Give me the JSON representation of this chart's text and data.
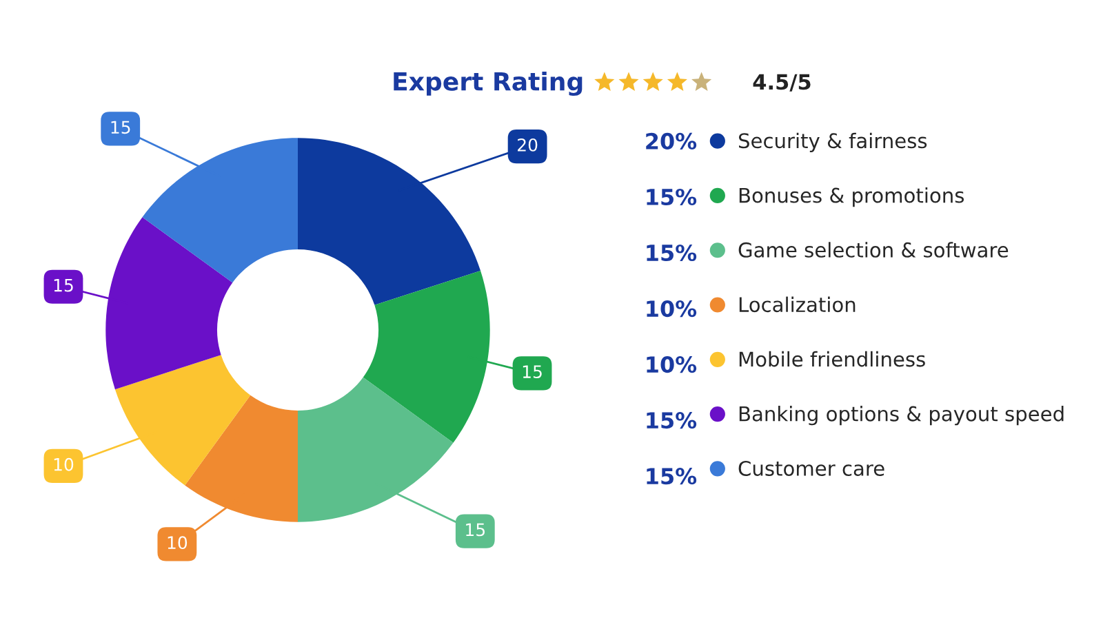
{
  "chart_data": {
    "type": "donut",
    "title": "Expert Rating",
    "annotations": [
      "4.5/5",
      "20%",
      "15%",
      "15%",
      "10%",
      "10%",
      "15%",
      "15%"
    ],
    "categories": [
      "Security & fairness",
      "Bonuses & promotions",
      "Game selection & software",
      "Localization",
      "Mobile friendliness",
      "Banking options & payout speed",
      "Customer care"
    ],
    "values": [
      20,
      15,
      15,
      10,
      10,
      15,
      15
    ],
    "data_labels": true,
    "colors": [
      "#0d3a9e",
      "#20a850",
      "#5cbf8c",
      "#f08a30",
      "#fcc430",
      "#6a10c8",
      "#3a7ad8"
    ],
    "legend": "right"
  }
}
